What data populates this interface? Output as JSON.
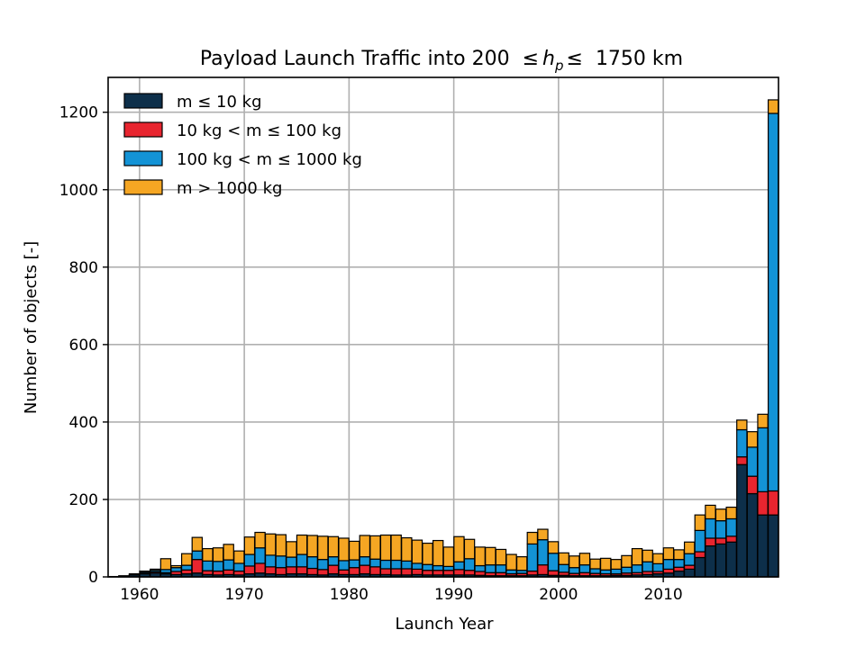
{
  "chart_data": {
    "type": "bar",
    "stacked": true,
    "title_prefix": "Payload Launch Traffic into 200",
    "title_symbol_le": "≤",
    "title_var": "h",
    "title_var_sub": "p",
    "title_suffix": "1750 km",
    "xlabel": "Launch Year",
    "ylabel": "Number of objects [-]",
    "xlim": [
      1957,
      2021
    ],
    "ylim": [
      0,
      1290
    ],
    "xticks": [
      1960,
      1970,
      1980,
      1990,
      2000,
      2010
    ],
    "yticks": [
      0,
      200,
      400,
      600,
      800,
      1000,
      1200
    ],
    "grid": true,
    "legend_position": "top-left",
    "categories": [
      1957,
      1958,
      1959,
      1960,
      1961,
      1962,
      1963,
      1964,
      1965,
      1966,
      1967,
      1968,
      1969,
      1970,
      1971,
      1972,
      1973,
      1974,
      1975,
      1976,
      1977,
      1978,
      1979,
      1980,
      1981,
      1982,
      1983,
      1984,
      1985,
      1986,
      1987,
      1988,
      1989,
      1990,
      1991,
      1992,
      1993,
      1994,
      1995,
      1996,
      1997,
      1998,
      1999,
      2000,
      2001,
      2002,
      2003,
      2004,
      2005,
      2006,
      2007,
      2008,
      2009,
      2010,
      2011,
      2012,
      2013,
      2014,
      2015,
      2016,
      2017,
      2018,
      2019,
      2020
    ],
    "series": [
      {
        "name": "m ≤ 10 kg",
        "color": "#0d2f4a",
        "values": [
          1,
          2,
          5,
          8,
          10,
          8,
          6,
          8,
          10,
          6,
          5,
          6,
          5,
          8,
          10,
          8,
          6,
          8,
          8,
          6,
          5,
          8,
          6,
          6,
          8,
          6,
          6,
          5,
          5,
          6,
          5,
          5,
          5,
          5,
          5,
          4,
          3,
          3,
          3,
          3,
          5,
          6,
          4,
          4,
          3,
          3,
          3,
          3,
          4,
          4,
          5,
          6,
          8,
          10,
          15,
          20,
          50,
          80,
          85,
          90,
          290,
          215,
          160,
          160
        ]
      },
      {
        "name": "10 kg < m ≤ 100 kg",
        "color": "#e8252f",
        "values": [
          0,
          0,
          1,
          2,
          3,
          3,
          8,
          10,
          35,
          10,
          10,
          12,
          10,
          20,
          25,
          18,
          18,
          18,
          18,
          16,
          14,
          22,
          12,
          18,
          22,
          20,
          15,
          16,
          16,
          14,
          12,
          12,
          12,
          14,
          12,
          10,
          8,
          8,
          5,
          6,
          10,
          25,
          12,
          8,
          6,
          8,
          6,
          5,
          4,
          6,
          6,
          8,
          6,
          10,
          10,
          10,
          15,
          20,
          15,
          15,
          20,
          45,
          60,
          62
        ]
      },
      {
        "name": "100 kg < m ≤ 1000 kg",
        "color": "#1393d6",
        "values": [
          0,
          0,
          0,
          3,
          4,
          8,
          10,
          12,
          22,
          25,
          25,
          26,
          20,
          30,
          40,
          30,
          30,
          25,
          32,
          30,
          26,
          22,
          24,
          20,
          22,
          20,
          22,
          22,
          20,
          15,
          15,
          12,
          10,
          20,
          30,
          15,
          20,
          20,
          10,
          8,
          70,
          65,
          45,
          20,
          15,
          20,
          12,
          10,
          12,
          15,
          20,
          25,
          20,
          25,
          20,
          30,
          55,
          50,
          45,
          45,
          70,
          75,
          165,
          975
        ]
      },
      {
        "name": "m > 1000 kg",
        "color": "#f5a623",
        "values": [
          0,
          1,
          2,
          2,
          3,
          28,
          5,
          30,
          35,
          32,
          35,
          40,
          32,
          45,
          40,
          55,
          55,
          40,
          50,
          55,
          60,
          52,
          58,
          48,
          55,
          60,
          65,
          65,
          60,
          60,
          55,
          65,
          50,
          65,
          50,
          48,
          45,
          40,
          40,
          35,
          30,
          27,
          30,
          30,
          30,
          30,
          25,
          30,
          25,
          30,
          42,
          30,
          26,
          30,
          25,
          30,
          40,
          35,
          30,
          30,
          25,
          40,
          35,
          35
        ]
      }
    ]
  }
}
